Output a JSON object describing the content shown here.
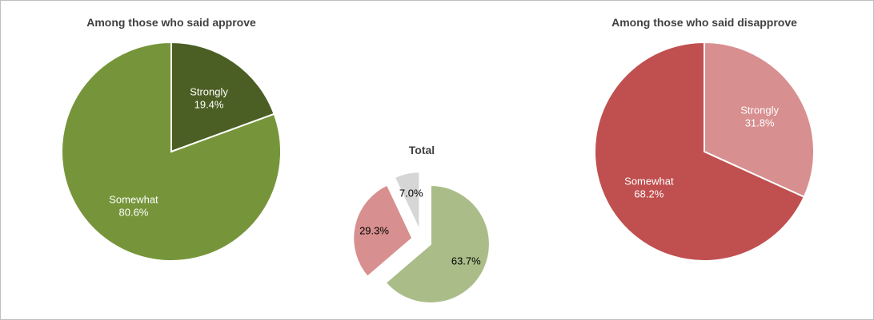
{
  "chart_data": [
    {
      "type": "pie",
      "title": "Among those who said approve",
      "categories": [
        "Strongly",
        "Somewhat"
      ],
      "values": [
        19.4,
        80.6
      ],
      "labels": [
        "19.4%",
        "80.6%"
      ],
      "colors": [
        "#4b5f24",
        "#76953a"
      ],
      "label_color": "#ffffff",
      "exploded": false
    },
    {
      "type": "pie",
      "title": "Total",
      "categories": [
        "",
        "",
        ""
      ],
      "values": [
        63.7,
        29.3,
        7.0
      ],
      "labels": [
        "63.7%",
        "29.3%",
        "7.0%"
      ],
      "colors": [
        "#aabd89",
        "#d88f8f",
        "#d6d6d6"
      ],
      "label_color": "#000000",
      "exploded": true
    },
    {
      "type": "pie",
      "title": "Among those who said disapprove",
      "categories": [
        "Strongly",
        "Somewhat"
      ],
      "values": [
        31.8,
        68.2
      ],
      "labels": [
        "31.8%",
        "68.2%"
      ],
      "colors": [
        "#d88f8f",
        "#c04f4f"
      ],
      "label_color": "#ffffff",
      "exploded": false
    }
  ]
}
